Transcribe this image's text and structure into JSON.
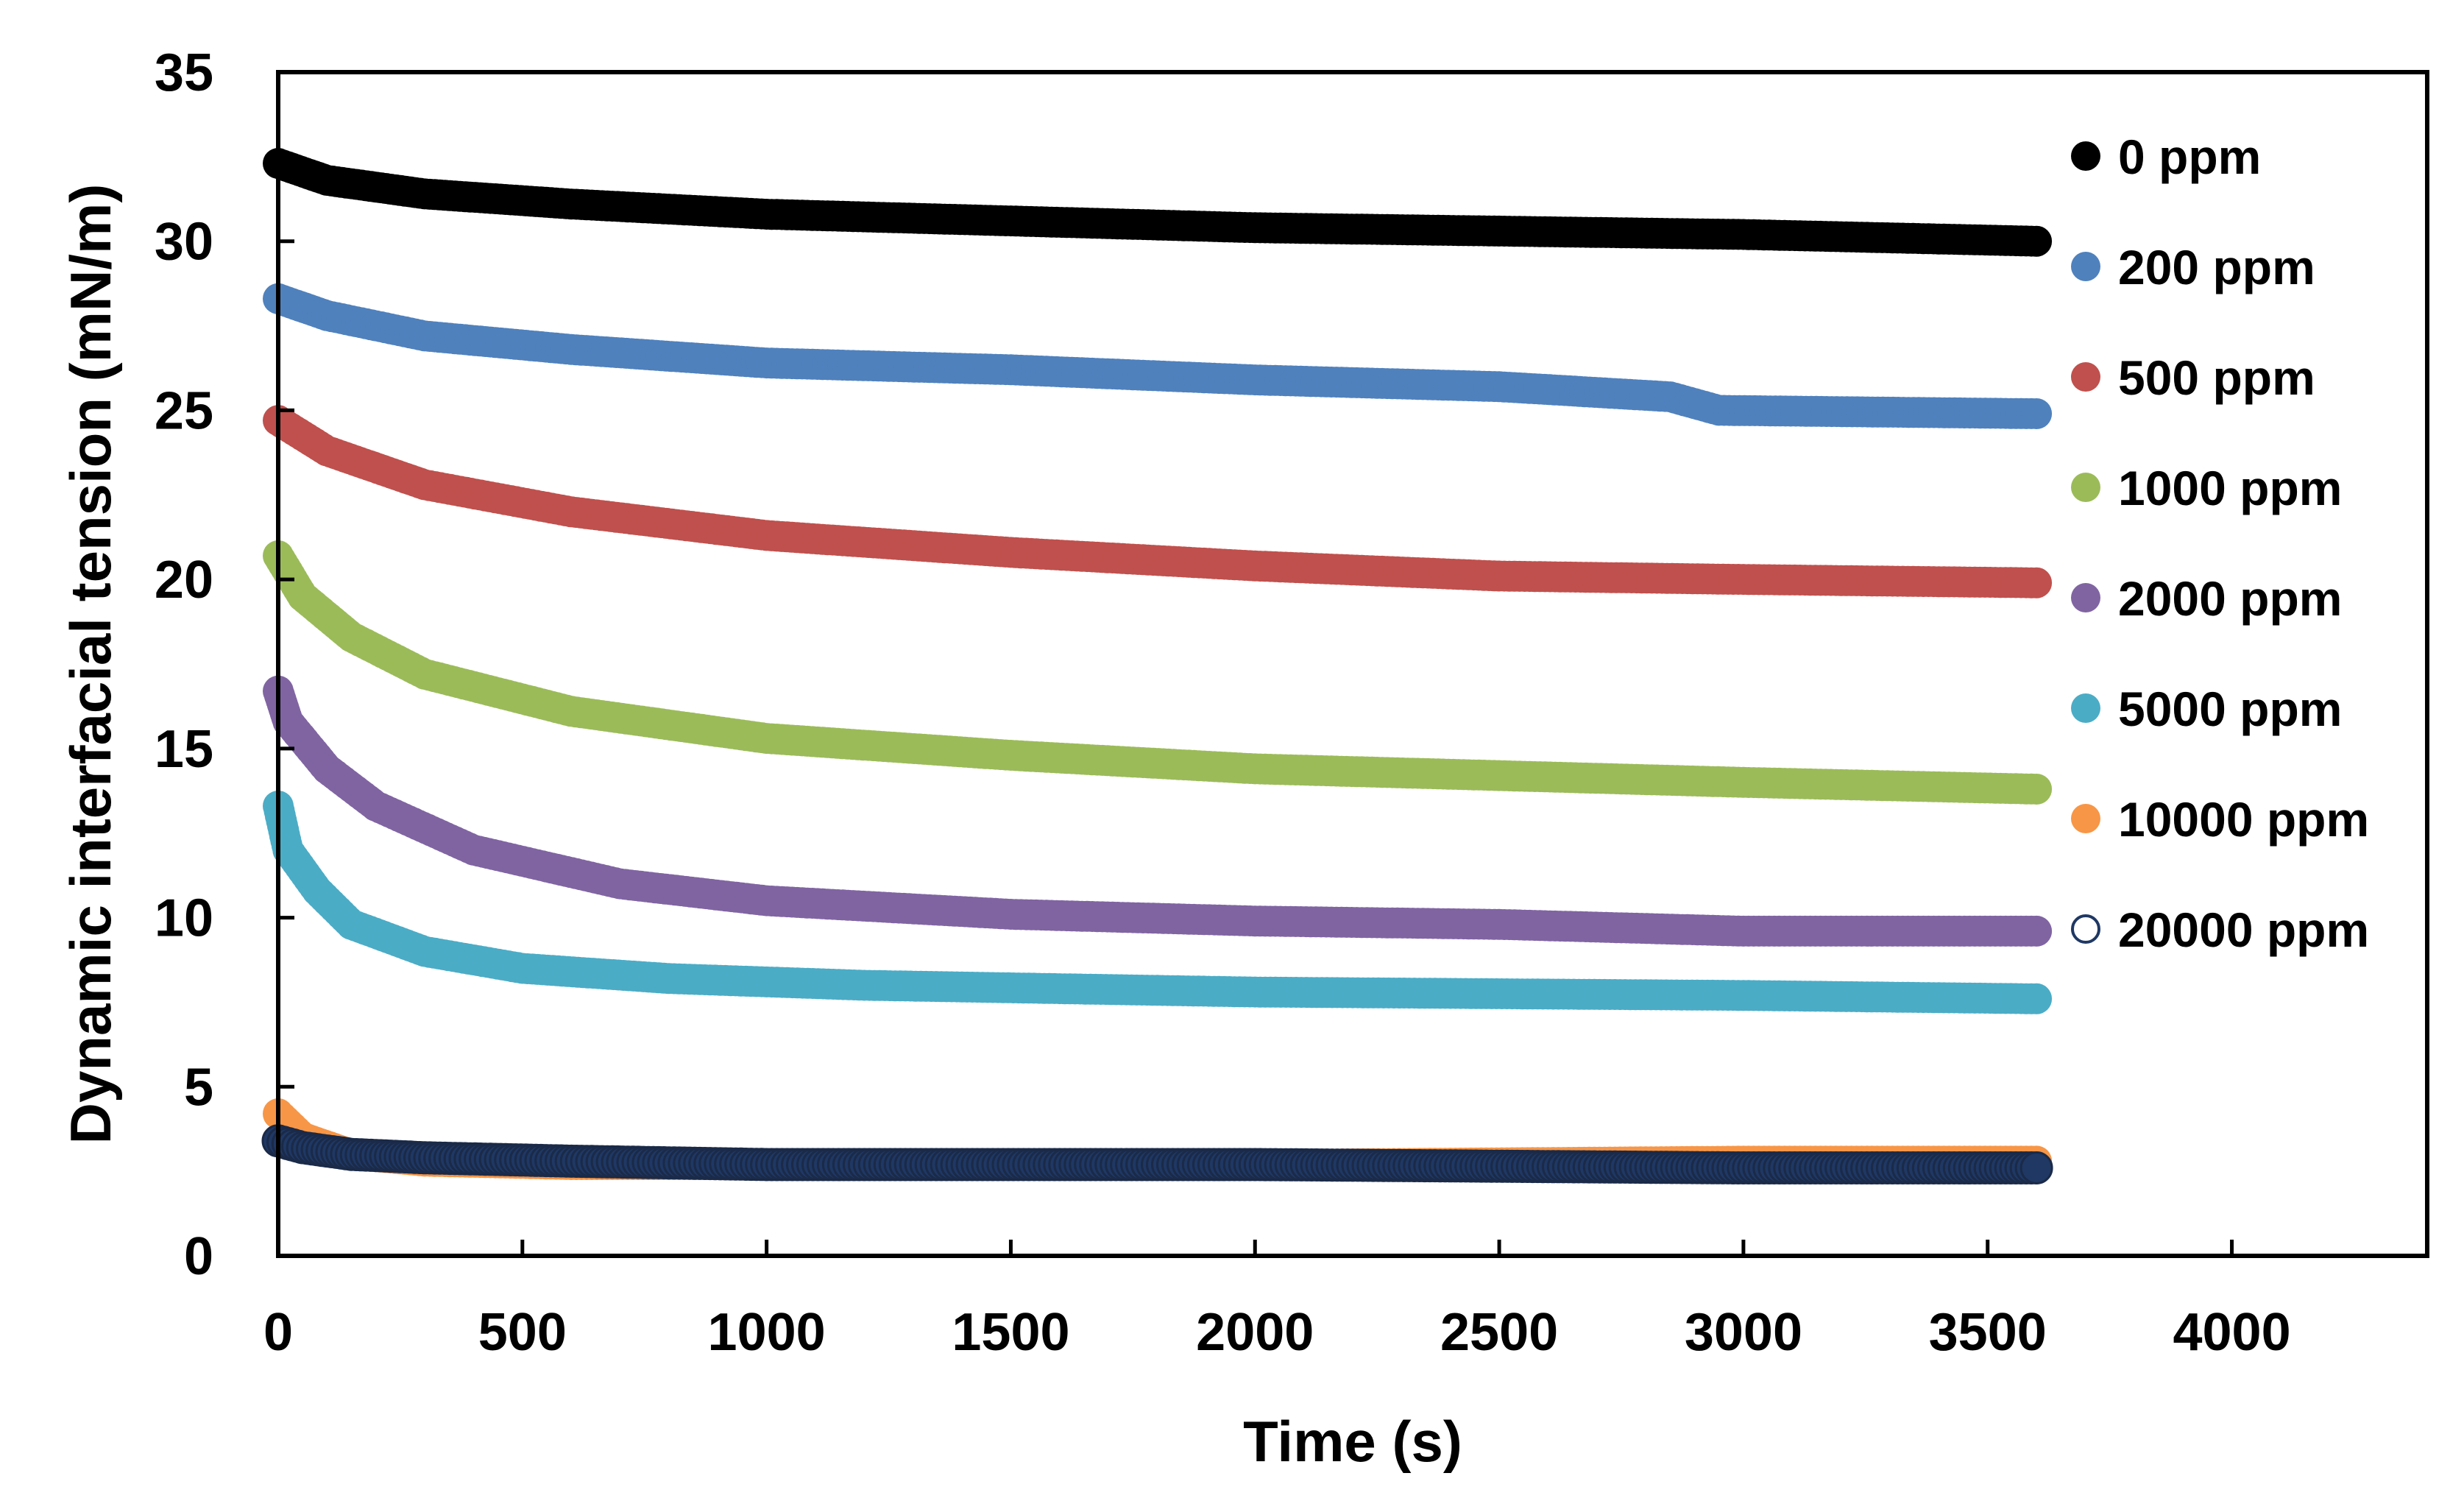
{
  "chart_data": {
    "type": "scatter",
    "title": "",
    "xlabel": "Time (s)",
    "ylabel": "Dynamic interfacial tension (mN/m)",
    "xlim": [
      0,
      4400
    ],
    "ylim": [
      0,
      35
    ],
    "x_ticks": [
      0,
      500,
      1000,
      1500,
      2000,
      2500,
      3000,
      3500,
      4000
    ],
    "y_ticks": [
      0,
      5,
      10,
      15,
      20,
      25,
      30,
      35
    ],
    "x_tick_labels": [
      "0",
      "500",
      "1000",
      "1500",
      "2000",
      "2500",
      "3000",
      "3500",
      "4000"
    ],
    "y_tick_labels": [
      "0",
      "5",
      "10",
      "15",
      "20",
      "25",
      "30",
      "35"
    ],
    "grid": false,
    "legend_position": "right",
    "series": [
      {
        "name": "0 ppm",
        "color": "#000000",
        "filled": true,
        "x": [
          0,
          100,
          300,
          600,
          1000,
          1500,
          2000,
          2500,
          3000,
          3600
        ],
        "y": [
          32.3,
          31.8,
          31.4,
          31.1,
          30.8,
          30.6,
          30.4,
          30.3,
          30.2,
          30.0
        ]
      },
      {
        "name": "200 ppm",
        "color": "#4F81BD",
        "filled": true,
        "x": [
          0,
          100,
          300,
          600,
          1000,
          1500,
          2000,
          2500,
          2850,
          2950,
          3600
        ],
        "y": [
          28.3,
          27.8,
          27.2,
          26.8,
          26.4,
          26.2,
          25.9,
          25.7,
          25.4,
          25.0,
          24.9
        ]
      },
      {
        "name": "500 ppm",
        "color": "#C0504D",
        "filled": true,
        "x": [
          0,
          100,
          300,
          600,
          1000,
          1500,
          2000,
          2500,
          3000,
          3600
        ],
        "y": [
          24.7,
          23.8,
          22.8,
          22.0,
          21.3,
          20.8,
          20.4,
          20.1,
          20.0,
          19.9
        ]
      },
      {
        "name": "1000 ppm",
        "color": "#9BBB59",
        "filled": true,
        "x": [
          0,
          50,
          150,
          300,
          600,
          1000,
          1500,
          2000,
          2500,
          3000,
          3600
        ],
        "y": [
          20.7,
          19.5,
          18.3,
          17.2,
          16.1,
          15.3,
          14.8,
          14.4,
          14.2,
          14.0,
          13.8
        ]
      },
      {
        "name": "2000 ppm",
        "color": "#8064A2",
        "filled": true,
        "x": [
          0,
          20,
          100,
          200,
          400,
          700,
          1000,
          1500,
          2000,
          2500,
          3000,
          3600
        ],
        "y": [
          16.7,
          15.8,
          14.4,
          13.3,
          12.0,
          11.0,
          10.5,
          10.1,
          9.9,
          9.8,
          9.6,
          9.6
        ]
      },
      {
        "name": "5000 ppm",
        "color": "#4BACC6",
        "filled": true,
        "x": [
          0,
          20,
          80,
          150,
          300,
          500,
          800,
          1200,
          2000,
          3000,
          3600
        ],
        "y": [
          13.3,
          12.0,
          10.8,
          9.8,
          9.0,
          8.5,
          8.2,
          8.0,
          7.8,
          7.7,
          7.6
        ]
      },
      {
        "name": "10000 ppm",
        "color": "#F79646",
        "filled": true,
        "x": [
          0,
          50,
          150,
          300,
          600,
          1000,
          2000,
          3000,
          3600
        ],
        "y": [
          4.2,
          3.5,
          3.0,
          2.8,
          2.7,
          2.7,
          2.7,
          2.8,
          2.8
        ]
      },
      {
        "name": "20000 ppm",
        "color": "#1F3864",
        "filled": false,
        "x": [
          0,
          50,
          150,
          300,
          600,
          1000,
          2000,
          3000,
          3600
        ],
        "y": [
          3.4,
          3.2,
          3.0,
          2.9,
          2.8,
          2.7,
          2.7,
          2.6,
          2.6
        ]
      }
    ]
  }
}
